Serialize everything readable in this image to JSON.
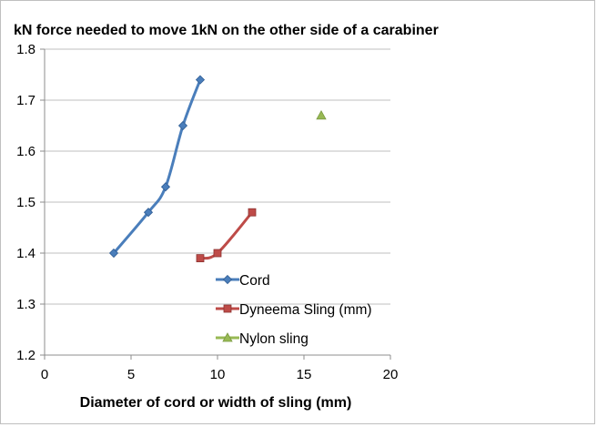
{
  "chart_data": {
    "type": "scatter",
    "title": "kN force needed to move 1kN on the other side of a carabiner",
    "xlabel": "Diameter of cord or width of sling (mm)",
    "ylabel": "",
    "xlim": [
      0,
      20
    ],
    "ylim": [
      1.2,
      1.8
    ],
    "x_ticks": [
      "0",
      "5",
      "10",
      "15",
      "20"
    ],
    "y_ticks": [
      "1.2",
      "1.3",
      "1.4",
      "1.5",
      "1.6",
      "1.7",
      "1.8"
    ],
    "grid": "horizontal",
    "legend_position": "right-inside-bottom",
    "series": [
      {
        "name": "Cord",
        "color": "#4a7ebb",
        "marker": "diamond",
        "smooth": true,
        "x": [
          4,
          6,
          7,
          8,
          9
        ],
        "y": [
          1.4,
          1.48,
          1.53,
          1.65,
          1.74
        ]
      },
      {
        "name": "Dyneema Sling (mm)",
        "color": "#be4b48",
        "marker": "square",
        "smooth": true,
        "x": [
          9,
          10,
          12
        ],
        "y": [
          1.39,
          1.4,
          1.48
        ]
      },
      {
        "name": "Nylon sling",
        "color": "#98b954",
        "marker": "triangle",
        "smooth": false,
        "x": [
          16
        ],
        "y": [
          1.67
        ]
      }
    ]
  }
}
